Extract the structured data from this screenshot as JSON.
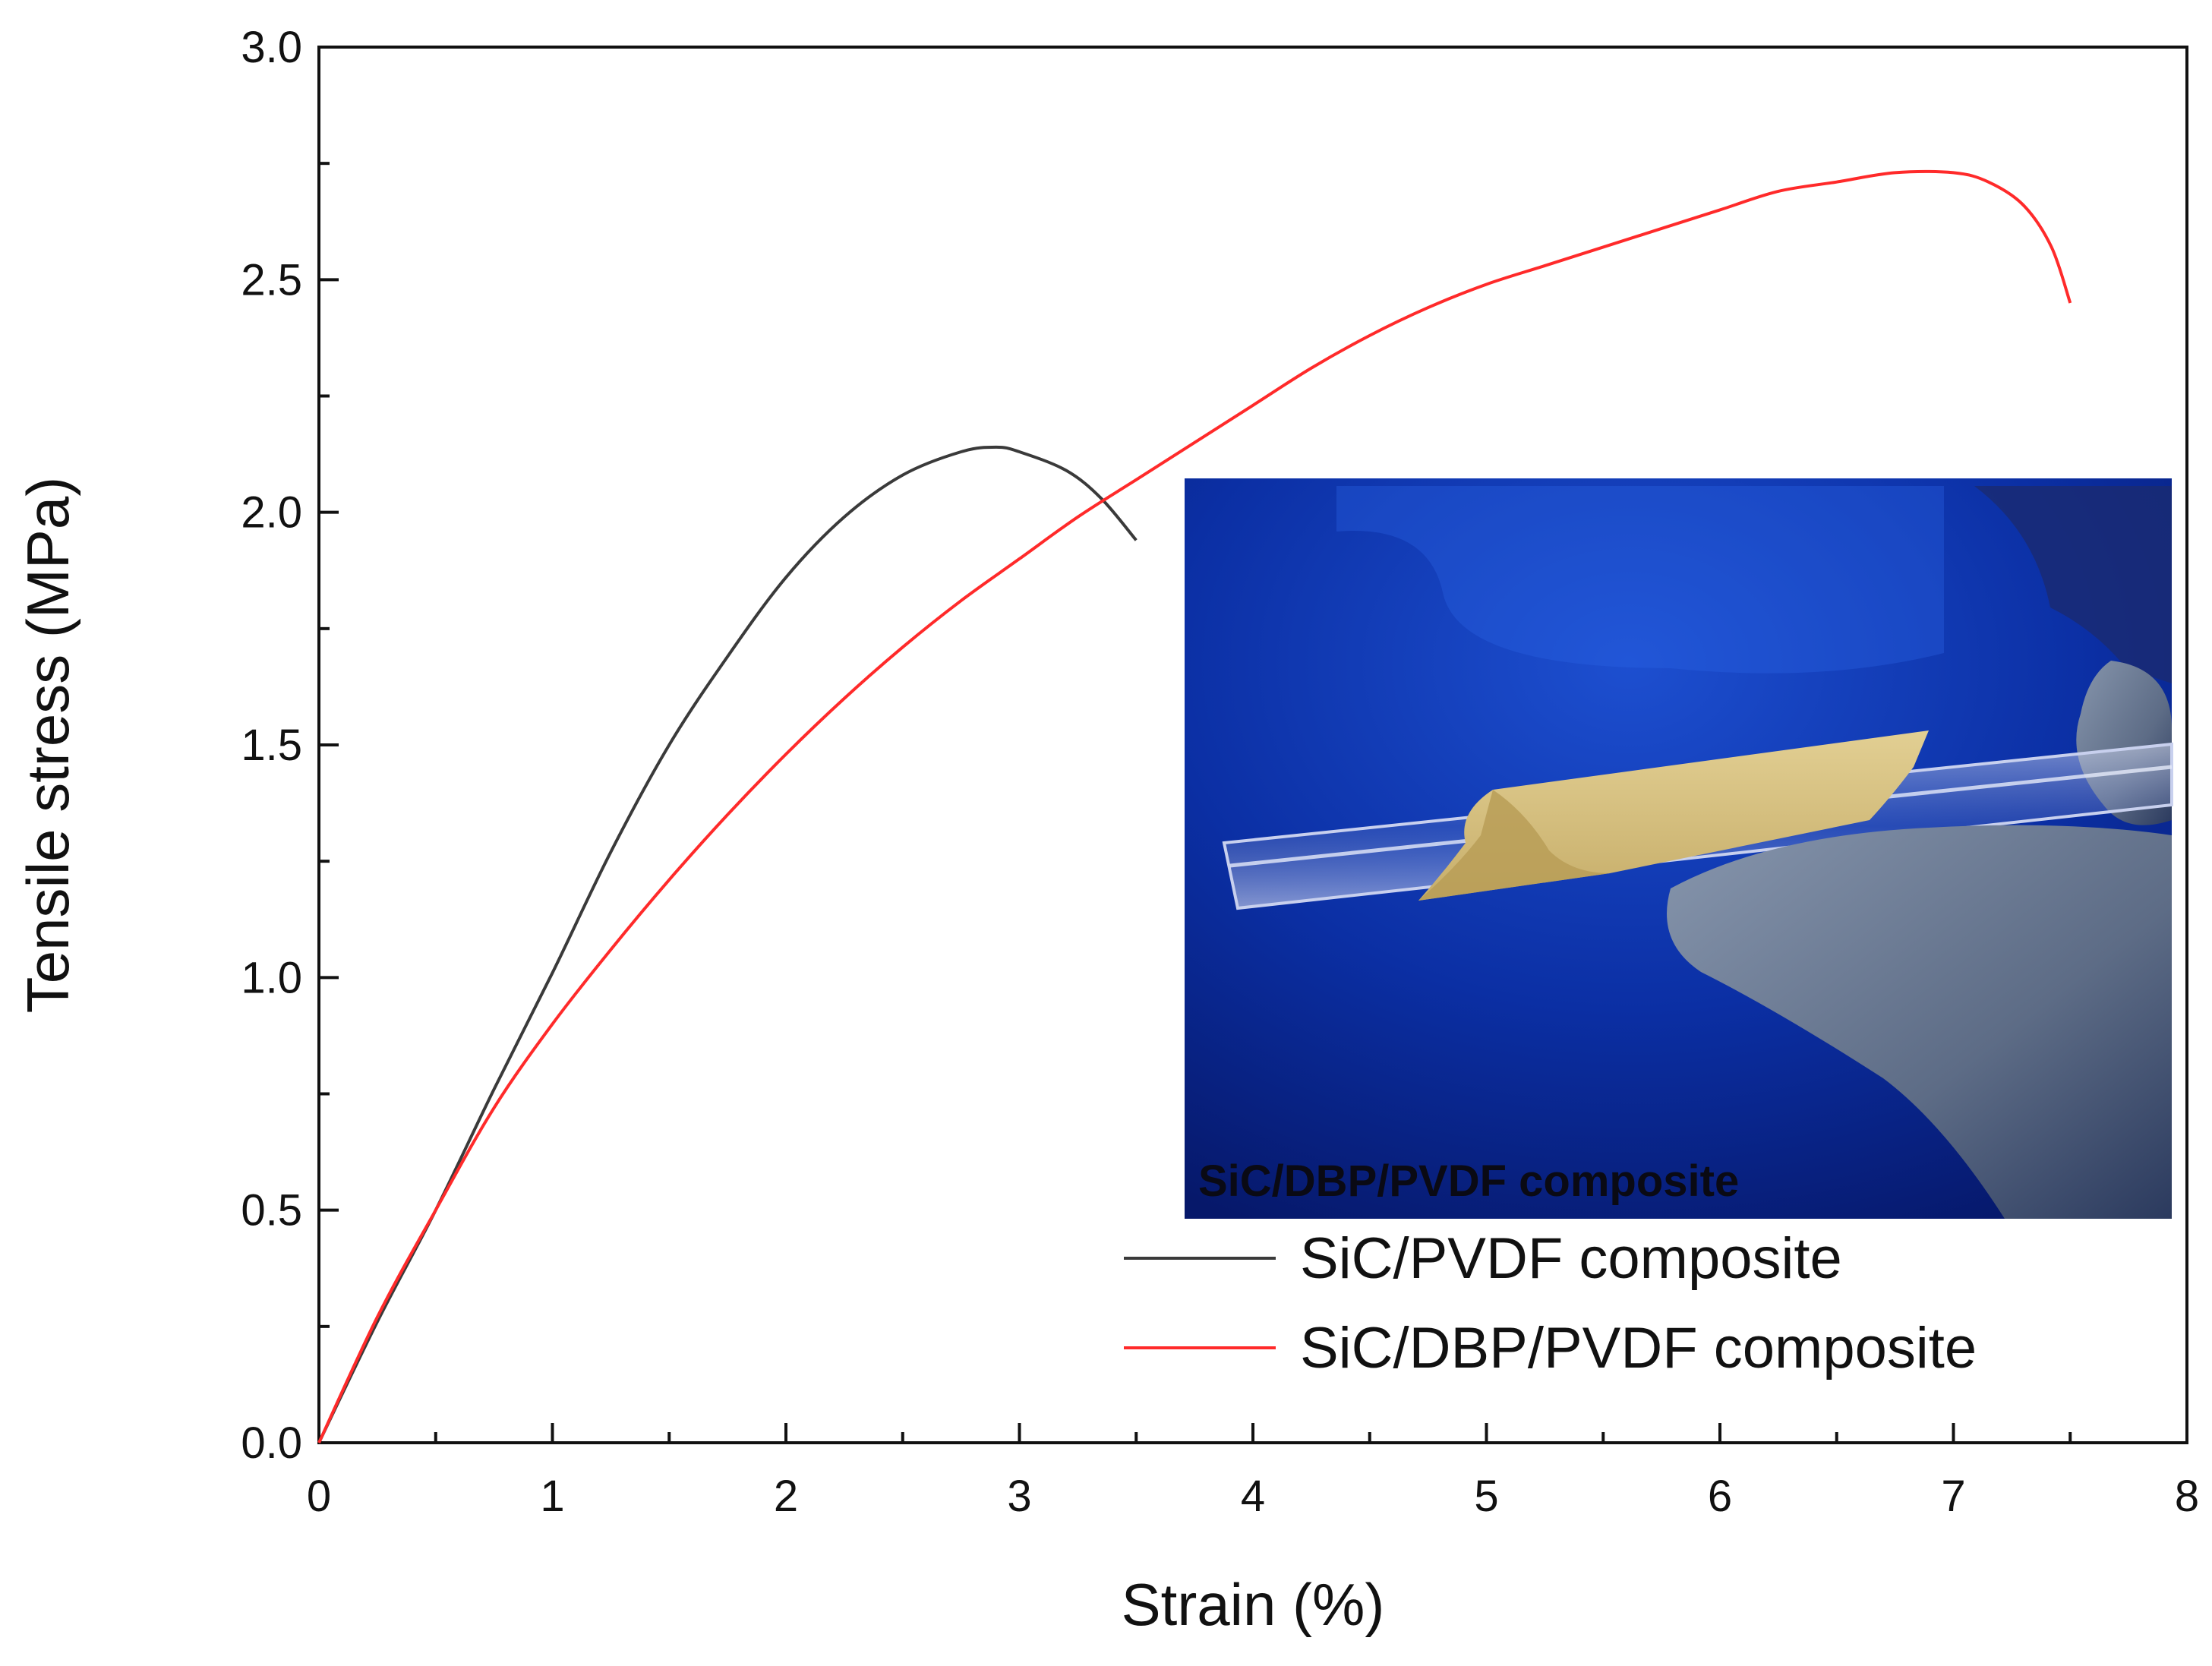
{
  "chart_data": {
    "type": "line",
    "xlabel": "Strain (%)",
    "ylabel": "Tensile stress (MPa)",
    "xlim": [
      0,
      8
    ],
    "ylim": [
      0,
      3.0
    ],
    "xticks": [
      0,
      1,
      2,
      3,
      4,
      5,
      6,
      7,
      8
    ],
    "xtick_labels": [
      "0",
      "1",
      "2",
      "3",
      "4",
      "5",
      "6",
      "7",
      "8"
    ],
    "yticks": [
      0,
      0.5,
      1.0,
      1.5,
      2.0,
      2.5,
      3.0
    ],
    "ytick_labels": [
      "0.0",
      "0.5",
      "1.0",
      "1.5",
      "2.0",
      "2.5",
      "3.0"
    ],
    "grid": false,
    "legend_position": "bottom-right",
    "series": [
      {
        "name": "SiC/PVDF composite",
        "color": "#3a3a3a",
        "x": [
          0,
          0.25,
          0.5,
          0.75,
          1.0,
          1.25,
          1.5,
          1.75,
          2.0,
          2.25,
          2.5,
          2.75,
          2.9,
          3.0,
          3.2,
          3.35,
          3.5
        ],
        "y": [
          0.0,
          0.26,
          0.5,
          0.76,
          1.01,
          1.27,
          1.5,
          1.69,
          1.86,
          1.99,
          2.08,
          2.13,
          2.14,
          2.13,
          2.09,
          2.03,
          1.94
        ]
      },
      {
        "name": "SiC/DBP/PVDF composite",
        "color": "#ff2a2a",
        "x": [
          0,
          0.25,
          0.5,
          0.75,
          1.0,
          1.25,
          1.5,
          1.75,
          2.0,
          2.25,
          2.5,
          2.75,
          3.0,
          3.25,
          3.5,
          3.75,
          4.0,
          4.25,
          4.5,
          4.75,
          5.0,
          5.25,
          5.5,
          5.75,
          6.0,
          6.25,
          6.5,
          6.75,
          7.0,
          7.15,
          7.3,
          7.42,
          7.5
        ],
        "y": [
          0.0,
          0.27,
          0.5,
          0.72,
          0.9,
          1.06,
          1.21,
          1.35,
          1.48,
          1.6,
          1.71,
          1.81,
          1.9,
          1.99,
          2.07,
          2.15,
          2.23,
          2.31,
          2.38,
          2.44,
          2.49,
          2.53,
          2.57,
          2.61,
          2.65,
          2.69,
          2.71,
          2.73,
          2.73,
          2.71,
          2.66,
          2.57,
          2.45
        ]
      }
    ]
  },
  "inset": {
    "caption": "SiC/DBP/PVDF composite"
  },
  "colors": {
    "inset_background": "#0b2fb0",
    "sheet": "#d9c385",
    "glove": "#6f7e93"
  }
}
